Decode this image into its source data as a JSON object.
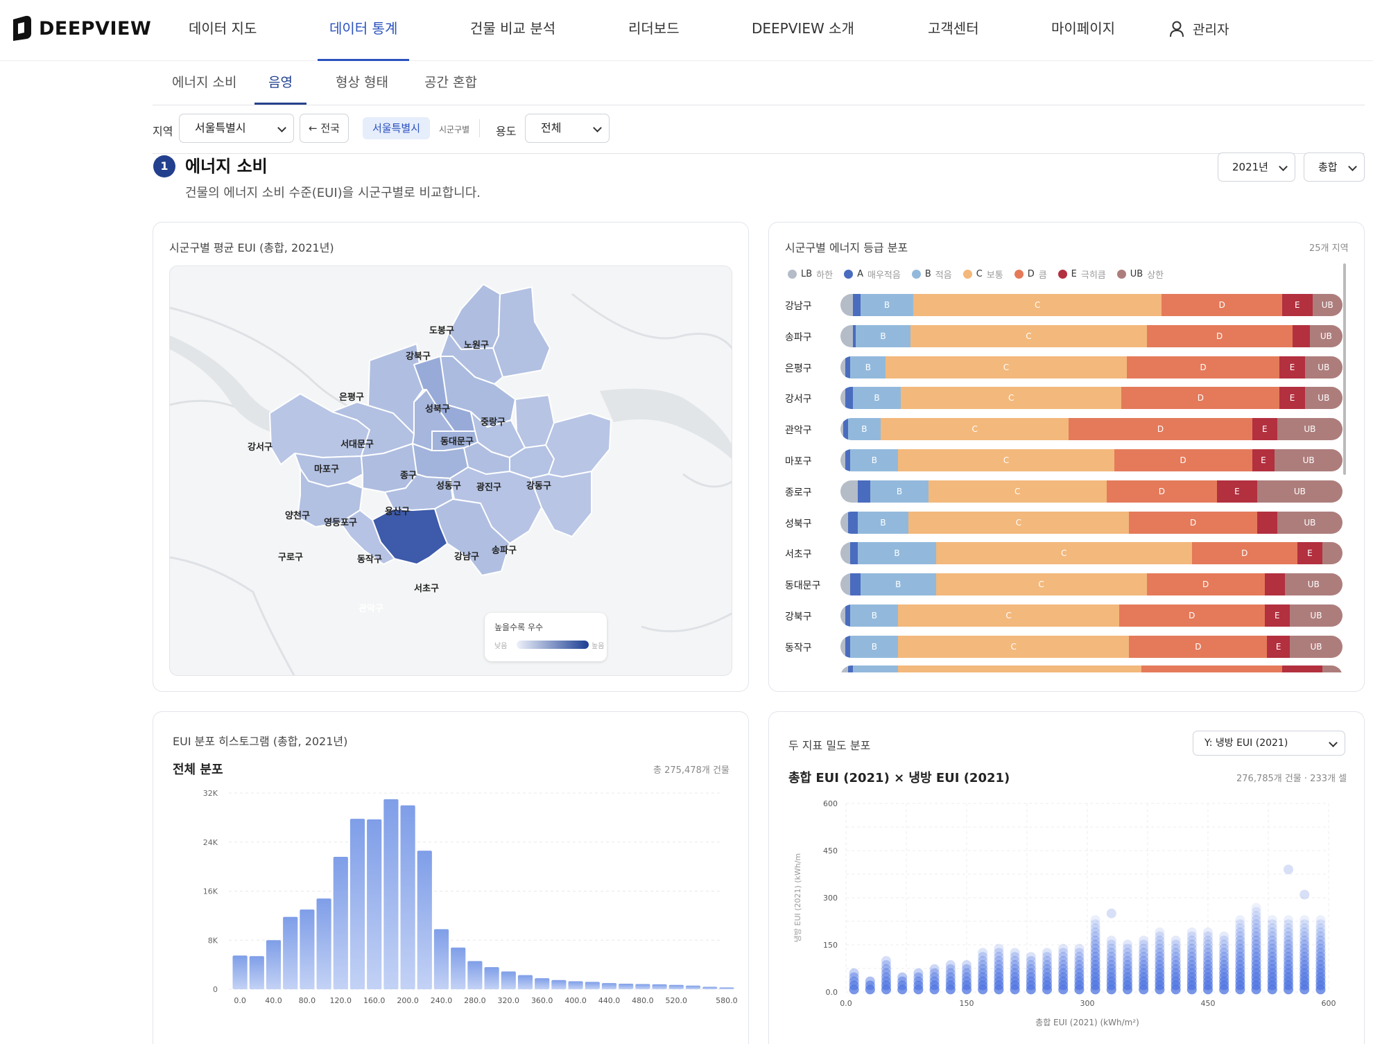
{
  "app": {
    "name": "DEEPVIEW"
  },
  "nav": {
    "items": [
      "데이터 지도",
      "데이터 통계",
      "건물 비교 분석",
      "리더보드",
      "DEEPVIEW 소개",
      "고객센터",
      "마이페이지"
    ],
    "active": "데이터 통계",
    "user": "관리자"
  },
  "subtabs": {
    "items": [
      "에너지 소비",
      "음영",
      "형상 형태",
      "공간 혼합"
    ],
    "active": "음영"
  },
  "filters": {
    "region_label": "지역",
    "region_value": "서울특별시",
    "back_label": "← 전국",
    "chip_label": "서울특별시",
    "chip_sub": "시군구별",
    "use_label": "용도",
    "use_value": "전체"
  },
  "section": {
    "number": "1",
    "title": "에너지 소비",
    "description": "건물의 에너지 소비 수준(EUI)을 시군구별로 비교합니다.",
    "year_value": "2021년",
    "type_value": "총합"
  },
  "map_card": {
    "title": "시군구별 평균 EUI (총합, 2021년)",
    "legend_title": "높을수록 우수",
    "legend_low": "낮음",
    "legend_high": "높음",
    "districts": [
      "도봉구",
      "노원구",
      "강북구",
      "은평구",
      "성북구",
      "중랑구",
      "서대문구",
      "동대문구",
      "강서구",
      "마포구",
      "종구",
      "성동구",
      "광진구",
      "강동구",
      "양천구",
      "영등포구",
      "용산구",
      "구로구",
      "동작구",
      "강남구",
      "송파구",
      "서초구",
      "관악구"
    ]
  },
  "grade_card": {
    "title": "시군구별 에너지 등급 분포",
    "meta": "25개 지역",
    "legend": [
      {
        "code": "LB",
        "desc": "하한",
        "color": "#b4bcc8"
      },
      {
        "code": "A",
        "desc": "매우적음",
        "color": "#4a6cbf"
      },
      {
        "code": "B",
        "desc": "적음",
        "color": "#92b9dc"
      },
      {
        "code": "C",
        "desc": "보통",
        "color": "#f3b87b"
      },
      {
        "code": "D",
        "desc": "큼",
        "color": "#e47a5a"
      },
      {
        "code": "E",
        "desc": "극히큼",
        "color": "#b3303f"
      },
      {
        "code": "UB",
        "desc": "상한",
        "color": "#ad7d7c"
      }
    ],
    "rows": [
      {
        "name": "강남구",
        "segments": [
          2.5,
          1.5,
          10.5,
          49.5,
          24,
          6,
          6
        ]
      },
      {
        "name": "송파구",
        "segments": [
          2.5,
          0.5,
          11,
          47,
          29,
          3.5,
          6.5
        ]
      },
      {
        "name": "은평구",
        "segments": [
          1,
          1,
          7,
          48,
          30.5,
          5,
          7.5
        ]
      },
      {
        "name": "강서구",
        "segments": [
          1,
          1.5,
          9.5,
          44,
          31.5,
          5,
          7.5
        ]
      },
      {
        "name": "관악구",
        "segments": [
          0.5,
          1,
          6.5,
          37.5,
          36.5,
          5,
          13
        ]
      },
      {
        "name": "마포구",
        "segments": [
          1,
          1,
          9.5,
          43,
          27.5,
          4.5,
          13.5
        ]
      },
      {
        "name": "종로구",
        "segments": [
          3.5,
          2.5,
          11.5,
          35.5,
          22,
          8,
          17
        ]
      },
      {
        "name": "성북구",
        "segments": [
          1.5,
          2,
          10,
          44,
          25.5,
          4,
          13
        ]
      },
      {
        "name": "서초구",
        "segments": [
          2,
          1.5,
          15.5,
          51,
          21,
          5,
          4
        ]
      },
      {
        "name": "동대문구",
        "segments": [
          2,
          2,
          15,
          42,
          23.5,
          4,
          11.5
        ]
      },
      {
        "name": "강북구",
        "segments": [
          1,
          1,
          9.5,
          44,
          29,
          5,
          10.5
        ]
      },
      {
        "name": "동작구",
        "segments": [
          1,
          1,
          9.5,
          46,
          27.5,
          4.5,
          10.5
        ]
      }
    ]
  },
  "hist_card": {
    "title": "EUI 분포 히스토그램 (총합, 2021년)",
    "subtitle": "전체 분포",
    "meta": "총 275,478개 건물"
  },
  "density_card": {
    "title": "두 지표 밀도 분포",
    "select_value": "Y: 냉방 EUI (2021)",
    "subtitle": "총합 EUI (2021) × 냉방 EUI (2021)",
    "meta": "276,785개 건물 · 233개 셀"
  },
  "chart_data": [
    {
      "type": "bar",
      "title": "전체 분포",
      "xlabel": "",
      "ylabel": "",
      "x_tick_labels": [
        "0.0",
        "40.0",
        "80.0",
        "120.0",
        "160.0",
        "200.0",
        "240.0",
        "280.0",
        "320.0",
        "360.0",
        "400.0",
        "440.0",
        "480.0",
        "520.0",
        "580.0"
      ],
      "y_tick_labels": [
        "0",
        "8K",
        "16K",
        "24K",
        "32K"
      ],
      "ylim": [
        0,
        32000
      ],
      "bin_width": 20,
      "x_start": 0,
      "values": [
        5500,
        5400,
        8000,
        11800,
        13000,
        14800,
        21600,
        27800,
        27700,
        31000,
        30000,
        22600,
        9800,
        6800,
        4600,
        3600,
        2900,
        2300,
        1800,
        1500,
        1300,
        1200,
        1000,
        900,
        850,
        800,
        700,
        600,
        400,
        300
      ]
    },
    {
      "type": "scatter",
      "title": "총합 EUI (2021) × 냉방 EUI (2021)",
      "xlabel": "총합 EUI (2021) (kWh/m²)",
      "ylabel": "냉방 EUI (2021) (kWh/m",
      "xlim": [
        0,
        600
      ],
      "ylim": [
        0,
        600
      ],
      "x_ticks": [
        "0.0",
        "150",
        "300",
        "450",
        "600"
      ],
      "y_ticks": [
        "0.0",
        "150",
        "300",
        "450",
        "600"
      ],
      "columns": [
        {
          "x": 10,
          "ymax": 70
        },
        {
          "x": 30,
          "ymax": 40
        },
        {
          "x": 50,
          "ymax": 110
        },
        {
          "x": 70,
          "ymax": 55
        },
        {
          "x": 90,
          "ymax": 60
        },
        {
          "x": 110,
          "ymax": 75
        },
        {
          "x": 130,
          "ymax": 90
        },
        {
          "x": 150,
          "ymax": 95
        },
        {
          "x": 170,
          "ymax": 135
        },
        {
          "x": 190,
          "ymax": 140
        },
        {
          "x": 210,
          "ymax": 135
        },
        {
          "x": 230,
          "ymax": 120
        },
        {
          "x": 250,
          "ymax": 130
        },
        {
          "x": 270,
          "ymax": 140
        },
        {
          "x": 290,
          "ymax": 140
        },
        {
          "x": 310,
          "ymax": 235
        },
        {
          "x": 330,
          "ymax": 175
        },
        {
          "x": 350,
          "ymax": 160
        },
        {
          "x": 370,
          "ymax": 165
        },
        {
          "x": 390,
          "ymax": 200
        },
        {
          "x": 410,
          "ymax": 175
        },
        {
          "x": 430,
          "ymax": 190
        },
        {
          "x": 450,
          "ymax": 200
        },
        {
          "x": 470,
          "ymax": 180
        },
        {
          "x": 490,
          "ymax": 230
        },
        {
          "x": 510,
          "ymax": 275
        },
        {
          "x": 530,
          "ymax": 230
        },
        {
          "x": 550,
          "ymax": 230
        },
        {
          "x": 570,
          "ymax": 230
        },
        {
          "x": 590,
          "ymax": 230
        }
      ],
      "outliers": [
        {
          "x": 330,
          "y": 250
        },
        {
          "x": 550,
          "y": 390
        },
        {
          "x": 570,
          "y": 310
        }
      ]
    }
  ]
}
